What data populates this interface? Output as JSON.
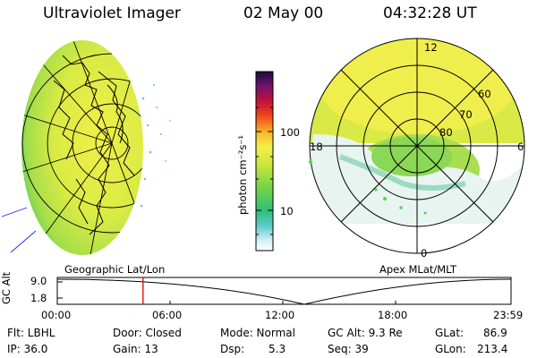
{
  "header": {
    "instrument": "Ultraviolet Imager",
    "date": "02 May 00",
    "time": "04:32:28 UT"
  },
  "colorbar": {
    "unit_label": "photon cm⁻²s⁻¹",
    "ticks": [
      "100",
      "10"
    ]
  },
  "polar_plot": {
    "mlt_labels": [
      "12",
      "18",
      "6",
      "0"
    ],
    "mlat_labels": [
      "60",
      "70",
      "80"
    ]
  },
  "map_labels": {
    "left": "Geographic Lat/Lon",
    "right": "Apex MLat/MLT"
  },
  "timeline": {
    "axis_label": "GC Alt",
    "y_ticks": [
      "9.0",
      "1.8"
    ],
    "x_ticks": [
      "00:00",
      "06:00",
      "12:00",
      "18:00",
      "23:59"
    ],
    "current_time_fraction": 0.189
  },
  "info": {
    "filter": "Flt: LBHL",
    "ip": "IP: 36.0",
    "door": "Door: Closed",
    "gain": "Gain: 13",
    "mode": "Mode: Normal",
    "dsp_label": "Dsp:",
    "dsp_value": "5.3",
    "gc_alt": "GC Alt: 9.3 Re",
    "seq": "Seq: 39",
    "glat": "GLat:",
    "glat_value": "86.9",
    "glon": "GLon:",
    "glon_value": "213.4"
  }
}
